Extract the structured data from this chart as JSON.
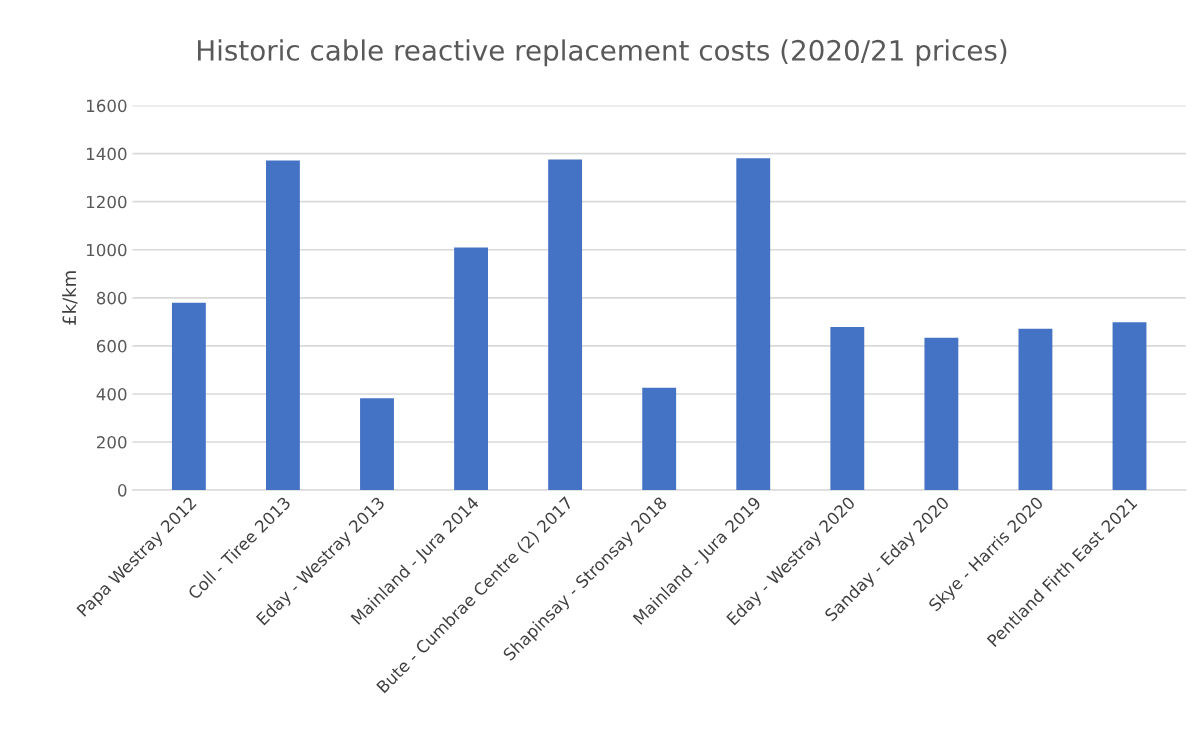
{
  "chart_data": {
    "type": "bar",
    "title": "Historic cable reactive replacement costs (2020/21 prices)",
    "ylabel": "£k/km",
    "categories": [
      "Papa Westray 2012",
      "Coll - Tiree 2013",
      "Eday - Westray 2013",
      "Mainland - Jura 2014",
      "Bute - Cumbrae Centre (2) 2017",
      "Shapinsay - Stronsay 2018",
      "Mainland - Jura 2019",
      "Eday - Westray 2020",
      "Sanday - Eday 2020",
      "Skye - Harris 2020",
      "Pentland Firth East 2021"
    ],
    "values": [
      780,
      1371,
      382,
      1009,
      1376,
      426,
      1381,
      679,
      634,
      671,
      698
    ],
    "color": "#4472c4",
    "ylim": [
      0,
      1600
    ],
    "yticks": [
      0,
      200,
      400,
      600,
      800,
      1000,
      1200,
      1400,
      1600
    ],
    "grid": "y"
  }
}
